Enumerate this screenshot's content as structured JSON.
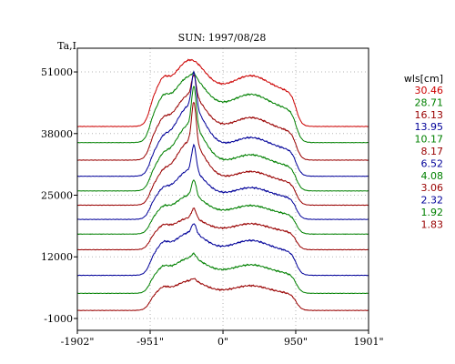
{
  "chart_data": {
    "type": "line",
    "title": "SUN: 1997/08/28",
    "ylabel": "Ta,I",
    "legend_title": "wls[cm]",
    "legend_position": "right",
    "x_ticks": [
      "-1902\"",
      "-951\"",
      "0\"",
      "950\"",
      "1901\""
    ],
    "x_tick_values": [
      -1902,
      -951,
      0,
      950,
      1901
    ],
    "xlim": [
      -1902,
      1901
    ],
    "y_ticks": [
      "51000",
      "38000",
      "25000",
      "12000",
      "-1000"
    ],
    "y_tick_values": [
      51000,
      38000,
      25000,
      12000,
      -1000
    ],
    "ylim": [
      -3500,
      56000
    ],
    "grid": true,
    "series": [
      {
        "name": "30.46",
        "color": "#cc0000",
        "baseline": 39500,
        "peak": 11200,
        "plateau": 8000,
        "limb": 5,
        "core": 0
      },
      {
        "name": "28.71",
        "color": "#008000",
        "baseline": 36100,
        "peak": 11800,
        "plateau": 7600,
        "limb": 3,
        "core": 0.12
      },
      {
        "name": "16.13",
        "color": "#990000",
        "baseline": 32400,
        "peak": 13200,
        "plateau": 6700,
        "limb": 3,
        "core": 0.55
      },
      {
        "name": "13.95",
        "color": "#000099",
        "baseline": 29000,
        "peak": 16200,
        "plateau": 6100,
        "limb": 3,
        "core": 0.75
      },
      {
        "name": "10.17",
        "color": "#008000",
        "baseline": 25900,
        "peak": 15400,
        "plateau": 5700,
        "limb": 3,
        "core": 0.9
      },
      {
        "name": "8.17",
        "color": "#990000",
        "baseline": 22900,
        "peak": 15000,
        "plateau": 5300,
        "limb": 3,
        "core": 0.95
      },
      {
        "name": "6.52",
        "color": "#000099",
        "baseline": 19900,
        "peak": 10000,
        "plateau": 5000,
        "limb": 3,
        "core": 0.9
      },
      {
        "name": "4.08",
        "color": "#008000",
        "baseline": 16800,
        "peak": 6900,
        "plateau": 4500,
        "limb": 3,
        "core": 0.8
      },
      {
        "name": "3.06",
        "color": "#990000",
        "baseline": 13500,
        "peak": 4900,
        "plateau": 4100,
        "limb": 3,
        "core": 0.7
      },
      {
        "name": "2.32",
        "color": "#000099",
        "baseline": 8100,
        "peak": 6600,
        "plateau": 5500,
        "limb": 3,
        "core": 0.5
      },
      {
        "name": "1.92",
        "color": "#008000",
        "baseline": 4300,
        "peak": 5500,
        "plateau": 4500,
        "limb": 3,
        "core": 0.3
      },
      {
        "name": "1.83",
        "color": "#990000",
        "baseline": 700,
        "peak": 4400,
        "plateau": 3900,
        "limb": 3,
        "core": 0.2
      }
    ]
  }
}
